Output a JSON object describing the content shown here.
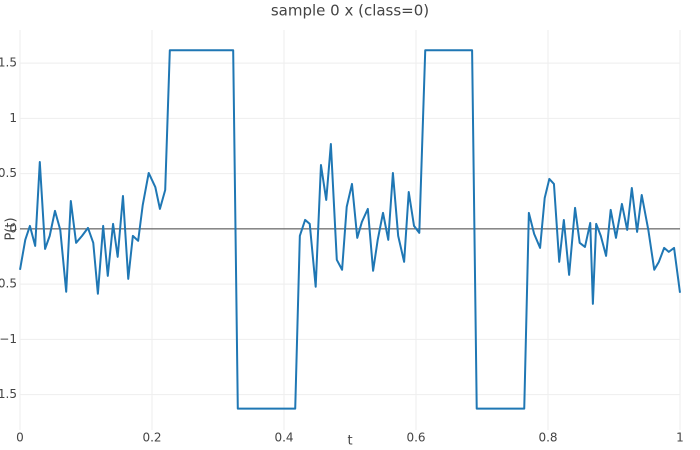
{
  "chart_data": {
    "type": "line",
    "title": "sample 0 x (class=0)",
    "x_label": "t",
    "y_label": "P(t)",
    "x": [
      0,
      0.008,
      0.015,
      0.023,
      0.03,
      0.038,
      0.045,
      0.053,
      0.061,
      0.07,
      0.077,
      0.085,
      0.094,
      0.103,
      0.111,
      0.118,
      0.126,
      0.133,
      0.141,
      0.148,
      0.156,
      0.164,
      0.171,
      0.179,
      0.186,
      0.195,
      0.205,
      0.212,
      0.22,
      0.227,
      0.323,
      0.33,
      0.417,
      0.424,
      0.432,
      0.439,
      0.448,
      0.456,
      0.464,
      0.471,
      0.48,
      0.488,
      0.495,
      0.503,
      0.511,
      0.518,
      0.527,
      0.535,
      0.542,
      0.55,
      0.558,
      0.565,
      0.573,
      0.582,
      0.589,
      0.597,
      0.605,
      0.614,
      0.685,
      0.692,
      0.764,
      0.771,
      0.779,
      0.788,
      0.795,
      0.802,
      0.809,
      0.817,
      0.824,
      0.832,
      0.841,
      0.848,
      0.856,
      0.864,
      0.868,
      0.873,
      0.88,
      0.888,
      0.895,
      0.903,
      0.912,
      0.92,
      0.927,
      0.935,
      0.942,
      0.952,
      0.961,
      0.968,
      0.976,
      0.983,
      0.991,
      1
    ],
    "series": [
      {
        "color": "#1f77b4",
        "values": [
          -0.37,
          -0.099,
          0.027,
          -0.154,
          0.605,
          -0.181,
          -0.063,
          0.163,
          -0.009,
          -0.569,
          0.253,
          -0.126,
          -0.063,
          0.009,
          -0.126,
          -0.587,
          0.027,
          -0.425,
          0.045,
          -0.253,
          0.298,
          -0.452,
          -0.063,
          -0.108,
          0.217,
          0.506,
          0.379,
          0.181,
          0.352,
          1.617,
          1.617,
          -1.626,
          -1.626,
          -0.063,
          0.081,
          0.045,
          -0.524,
          0.578,
          0.262,
          0.768,
          -0.28,
          -0.37,
          0.199,
          0.407,
          -0.081,
          0.063,
          0.181,
          -0.379,
          -0.099,
          0.145,
          -0.099,
          0.506,
          -0.063,
          -0.298,
          0.334,
          0.027,
          -0.036,
          1.617,
          1.617,
          -1.626,
          -1.626,
          0.145,
          -0.045,
          -0.172,
          0.28,
          0.452,
          0.407,
          -0.298,
          0.081,
          -0.416,
          0.19,
          -0.126,
          -0.163,
          0.054,
          -0.678,
          0.045,
          -0.063,
          -0.244,
          0.172,
          -0.081,
          0.226,
          -0.009,
          0.37,
          -0.027,
          0.307,
          -0.009,
          -0.37,
          -0.298,
          -0.172,
          -0.208,
          -0.172,
          -0.578
        ]
      }
    ],
    "xlim": [
      0,
      1
    ],
    "ylim": [
      -1.82,
      1.8
    ],
    "xticks": [
      0,
      0.2,
      0.4,
      0.6,
      0.8,
      1
    ],
    "yticks": [
      {
        "value": -1.5,
        "label": "−1.5"
      },
      {
        "value": -1,
        "label": "−1"
      },
      {
        "value": -0.5,
        "label": "−0.5"
      },
      0,
      0.5,
      1,
      1.5
    ],
    "grid": true,
    "zeroline": true
  }
}
